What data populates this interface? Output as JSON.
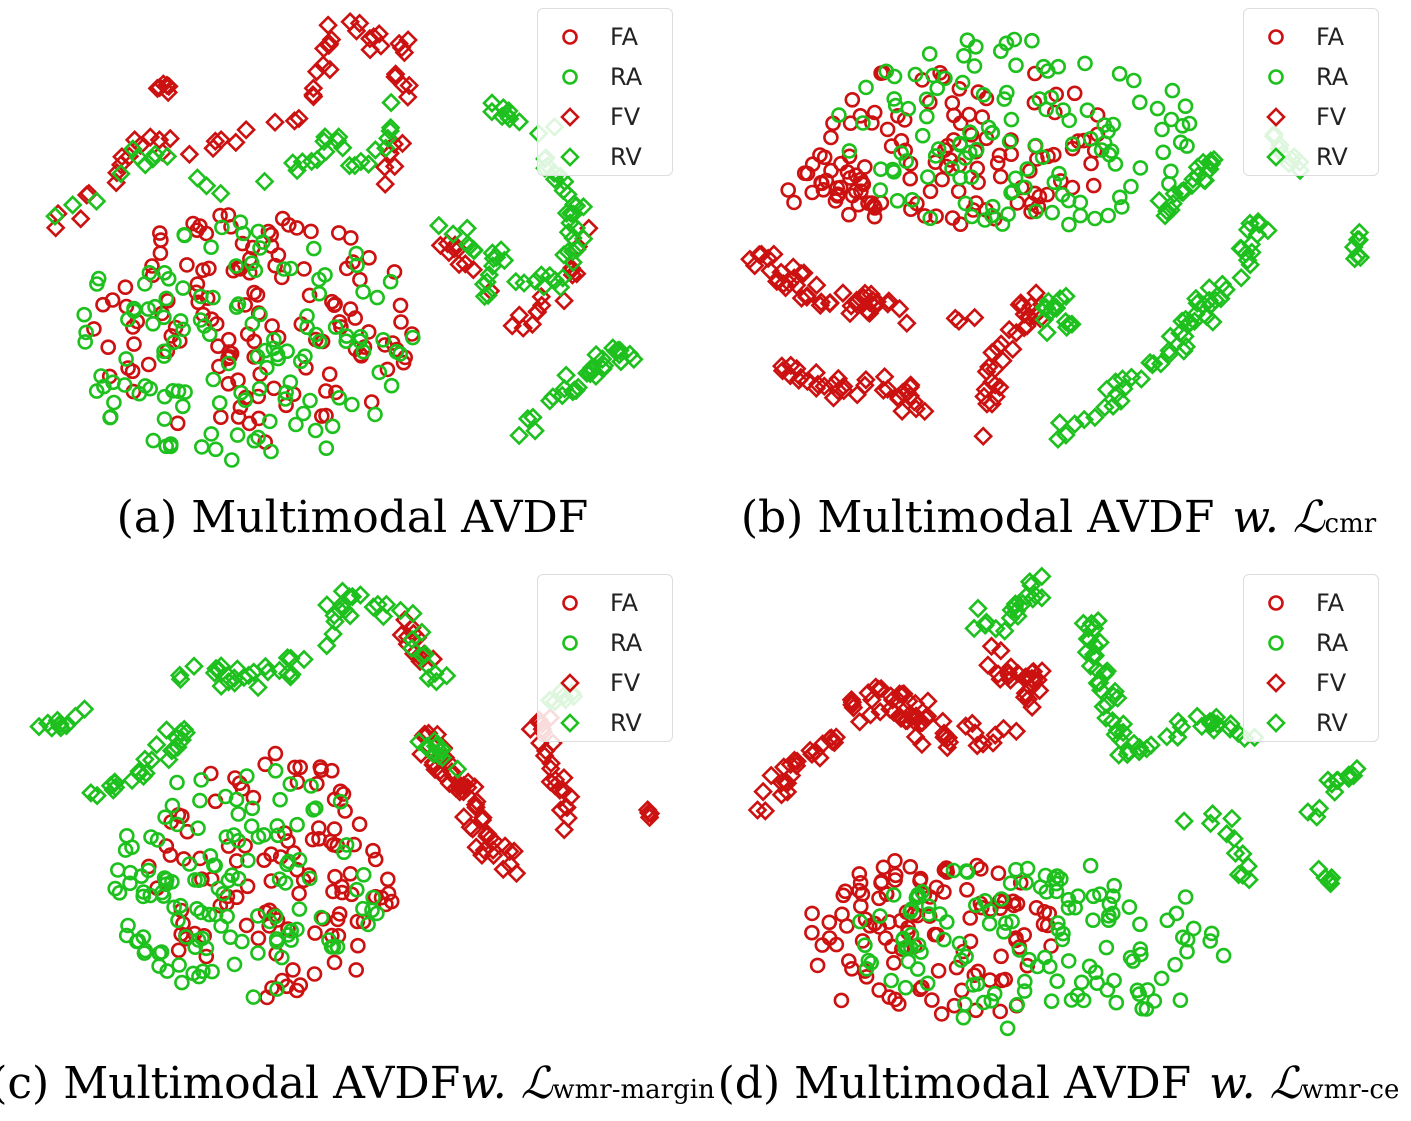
{
  "colors": {
    "fake": "#cc1111",
    "real": "#1ec01e"
  },
  "legend": [
    {
      "label": "FA",
      "marker": "circle",
      "color": "fake"
    },
    {
      "label": "RA",
      "marker": "circle",
      "color": "real"
    },
    {
      "label": "FV",
      "marker": "diamond",
      "color": "fake"
    },
    {
      "label": "RV",
      "marker": "diamond",
      "color": "real"
    }
  ],
  "panels": [
    {
      "caption": {
        "prefix": "(a)",
        "name": "Multimodal AVDF",
        "w": "",
        "loss": "",
        "sub": ""
      }
    },
    {
      "caption": {
        "prefix": "(b)",
        "name": "Multimodal AVDF",
        "w": "w.",
        "loss": "ℒ",
        "sub": "cmr"
      }
    },
    {
      "caption": {
        "prefix": "(c)",
        "name": "Multimodal AVDF",
        "w": "w.",
        "loss": "ℒ",
        "sub": "wmr-margin"
      }
    },
    {
      "caption": {
        "prefix": "(d)",
        "name": "Multimodal AVDF",
        "w": "w.",
        "loss": "ℒ",
        "sub": "wmr-ce"
      }
    }
  ],
  "chart_data": [
    {
      "type": "scatter",
      "title": "",
      "xlim": [
        0,
        700
      ],
      "ylim": [
        0,
        490
      ],
      "axes_visible": false,
      "legend_position": "top-right",
      "clusters": [
        {
          "series": "FA",
          "cx": 250,
          "cy": 330,
          "rx": 170,
          "ry": 120,
          "n": 130,
          "seed": 11
        },
        {
          "series": "RA",
          "cx": 240,
          "cy": 345,
          "rx": 180,
          "ry": 125,
          "n": 130,
          "seed": 12
        },
        {
          "series": "FV",
          "path": [
            [
              40,
              225
            ],
            [
              90,
              190
            ],
            [
              150,
              140
            ],
            [
              200,
              160
            ],
            [
              230,
              130
            ],
            [
              320,
              100
            ],
            [
              330,
              20
            ],
            [
              400,
              40
            ],
            [
              410,
              120
            ],
            [
              380,
              190
            ]
          ],
          "n": 60,
          "spread": 12,
          "seed": 13
        },
        {
          "series": "FV",
          "path": [
            [
              155,
              80
            ],
            [
              160,
              90
            ]
          ],
          "n": 6,
          "spread": 6,
          "seed": 14
        },
        {
          "series": "FV",
          "path": [
            [
              430,
              230
            ],
            [
              460,
              260
            ],
            [
              520,
              330
            ],
            [
              570,
              290
            ],
            [
              590,
              230
            ]
          ],
          "n": 25,
          "spread": 10,
          "seed": 15
        },
        {
          "series": "RV",
          "path": [
            [
              40,
              225
            ],
            [
              90,
              190
            ],
            [
              130,
              150
            ],
            [
              210,
              185
            ],
            [
              280,
              180
            ],
            [
              330,
              140
            ],
            [
              370,
              170
            ],
            [
              410,
              70
            ]
          ],
          "n": 35,
          "spread": 12,
          "seed": 16
        },
        {
          "series": "RV",
          "path": [
            [
              430,
              225
            ],
            [
              500,
              255
            ],
            [
              490,
              295
            ],
            [
              560,
              280
            ],
            [
              580,
              220
            ],
            [
              540,
              150
            ],
            [
              560,
              130
            ]
          ],
          "n": 55,
          "spread": 12,
          "seed": 17
        },
        {
          "series": "RV",
          "path": [
            [
              520,
              440
            ],
            [
              560,
              400
            ],
            [
              610,
              360
            ],
            [
              650,
              350
            ]
          ],
          "n": 30,
          "spread": 10,
          "seed": 18
        },
        {
          "series": "RV",
          "path": [
            [
              490,
              100
            ],
            [
              520,
              115
            ]
          ],
          "n": 8,
          "spread": 6,
          "seed": 19
        }
      ]
    },
    {
      "type": "scatter",
      "title": "",
      "xlim": [
        0,
        700
      ],
      "ylim": [
        0,
        490
      ],
      "axes_visible": false,
      "legend_position": "top-right",
      "clusters": [
        {
          "series": "FA",
          "cx": 250,
          "cy": 145,
          "rx": 160,
          "ry": 90,
          "n": 100,
          "seed": 21
        },
        {
          "series": "FA",
          "cx": 120,
          "cy": 190,
          "rx": 60,
          "ry": 25,
          "n": 25,
          "seed": 22
        },
        {
          "series": "RA",
          "cx": 300,
          "cy": 130,
          "rx": 190,
          "ry": 100,
          "n": 120,
          "seed": 23
        },
        {
          "series": "FV",
          "path": [
            [
              40,
              255
            ],
            [
              90,
              290
            ],
            [
              150,
              305
            ],
            [
              210,
              320
            ]
          ],
          "n": 45,
          "spread": 12,
          "seed": 24
        },
        {
          "series": "FV",
          "path": [
            [
              80,
              375
            ],
            [
              130,
              400
            ],
            [
              180,
              390
            ],
            [
              210,
              415
            ]
          ],
          "n": 35,
          "spread": 12,
          "seed": 25
        },
        {
          "series": "FV",
          "path": [
            [
              240,
              325
            ],
            [
              290,
              340
            ],
            [
              330,
              300
            ],
            [
              280,
              370
            ],
            [
              270,
              440
            ]
          ],
          "n": 35,
          "spread": 12,
          "seed": 26
        },
        {
          "series": "RV",
          "path": [
            [
              330,
              330
            ],
            [
              350,
              300
            ],
            [
              360,
              340
            ]
          ],
          "n": 15,
          "spread": 8,
          "seed": 27
        },
        {
          "series": "RV",
          "path": [
            [
              360,
              440
            ],
            [
              420,
              390
            ],
            [
              480,
              330
            ],
            [
              540,
              260
            ],
            [
              560,
              210
            ]
          ],
          "n": 60,
          "spread": 12,
          "seed": 28
        },
        {
          "series": "RV",
          "path": [
            [
              450,
              220
            ],
            [
              490,
              180
            ],
            [
              510,
              150
            ]
          ],
          "n": 20,
          "spread": 10,
          "seed": 29
        },
        {
          "series": "RV",
          "path": [
            [
              650,
              235
            ],
            [
              655,
              260
            ]
          ],
          "n": 8,
          "spread": 6,
          "seed": 30
        },
        {
          "series": "RV",
          "path": [
            [
              560,
              125
            ],
            [
              600,
              165
            ]
          ],
          "n": 10,
          "spread": 6,
          "seed": 31
        }
      ]
    },
    {
      "type": "scatter",
      "title": "",
      "xlim": [
        0,
        700
      ],
      "ylim": [
        0,
        490
      ],
      "axes_visible": false,
      "legend_position": "top-right",
      "clusters": [
        {
          "series": "FA",
          "cx": 270,
          "cy": 310,
          "rx": 130,
          "ry": 130,
          "n": 110,
          "seed": 41
        },
        {
          "series": "RA",
          "cx": 240,
          "cy": 320,
          "rx": 140,
          "ry": 120,
          "n": 130,
          "seed": 42
        },
        {
          "series": "FV",
          "path": [
            [
              420,
              170
            ],
            [
              460,
              220
            ],
            [
              480,
              270
            ],
            [
              510,
              300
            ]
          ],
          "n": 50,
          "spread": 12,
          "seed": 43
        },
        {
          "series": "FV",
          "path": [
            [
              540,
              150
            ],
            [
              560,
              210
            ],
            [
              570,
              260
            ]
          ],
          "n": 25,
          "spread": 10,
          "seed": 44
        },
        {
          "series": "FV",
          "path": [
            [
              400,
              50
            ],
            [
              430,
              100
            ]
          ],
          "n": 12,
          "spread": 8,
          "seed": 45
        },
        {
          "series": "FV",
          "path": [
            [
              645,
              245
            ],
            [
              650,
              250
            ]
          ],
          "n": 4,
          "spread": 5,
          "seed": 46
        },
        {
          "series": "RV",
          "path": [
            [
              30,
              165
            ],
            [
              70,
              150
            ],
            [
              90,
              130
            ]
          ],
          "n": 10,
          "spread": 8,
          "seed": 47
        },
        {
          "series": "RV",
          "path": [
            [
              90,
              225
            ],
            [
              130,
              210
            ],
            [
              160,
              180
            ],
            [
              180,
              160
            ]
          ],
          "n": 25,
          "spread": 10,
          "seed": 48
        },
        {
          "series": "RV",
          "path": [
            [
              180,
              100
            ],
            [
              230,
              105
            ],
            [
              280,
              110
            ],
            [
              320,
              60
            ],
            [
              355,
              20
            ],
            [
              400,
              40
            ],
            [
              440,
              110
            ]
          ],
          "n": 55,
          "spread": 12,
          "seed": 49
        },
        {
          "series": "RV",
          "path": [
            [
              420,
              170
            ],
            [
              450,
              190
            ],
            [
              480,
              210
            ]
          ],
          "n": 12,
          "spread": 8,
          "seed": 50
        },
        {
          "series": "RV",
          "path": [
            [
              540,
              140
            ],
            [
              570,
              120
            ]
          ],
          "n": 8,
          "spread": 6,
          "seed": 51
        }
      ]
    },
    {
      "type": "scatter",
      "title": "",
      "xlim": [
        0,
        700
      ],
      "ylim": [
        0,
        490
      ],
      "axes_visible": false,
      "legend_position": "top-right",
      "clusters": [
        {
          "series": "FA",
          "cx": 220,
          "cy": 380,
          "rx": 130,
          "ry": 90,
          "n": 110,
          "seed": 61
        },
        {
          "series": "RA",
          "cx": 330,
          "cy": 385,
          "rx": 190,
          "ry": 90,
          "n": 130,
          "seed": 62
        },
        {
          "series": "FV",
          "path": [
            [
              40,
              250
            ],
            [
              80,
              200
            ],
            [
              130,
              150
            ],
            [
              180,
              120
            ],
            [
              230,
              160
            ],
            [
              270,
              170
            ],
            [
              310,
              150
            ],
            [
              330,
              110
            ]
          ],
          "n": 70,
          "spread": 12,
          "seed": 63
        },
        {
          "series": "FV",
          "path": [
            [
              170,
              120
            ],
            [
              200,
              160
            ],
            [
              240,
              180
            ]
          ],
          "n": 20,
          "spread": 10,
          "seed": 64
        },
        {
          "series": "FV",
          "path": [
            [
              270,
              70
            ],
            [
              300,
              100
            ],
            [
              330,
              110
            ]
          ],
          "n": 15,
          "spread": 10,
          "seed": 65
        },
        {
          "series": "RV",
          "path": [
            [
              260,
              40
            ],
            [
              290,
              60
            ],
            [
              330,
              10
            ]
          ],
          "n": 20,
          "spread": 10,
          "seed": 66
        },
        {
          "series": "RV",
          "path": [
            [
              380,
              50
            ],
            [
              400,
              120
            ],
            [
              420,
              190
            ]
          ],
          "n": 35,
          "spread": 10,
          "seed": 67
        },
        {
          "series": "RV",
          "path": [
            [
              420,
              190
            ],
            [
              470,
              160
            ],
            [
              510,
              150
            ],
            [
              550,
              180
            ]
          ],
          "n": 25,
          "spread": 10,
          "seed": 68
        },
        {
          "series": "RV",
          "path": [
            [
              480,
              260
            ],
            [
              520,
              245
            ],
            [
              540,
              320
            ]
          ],
          "n": 12,
          "spread": 8,
          "seed": 69
        },
        {
          "series": "RV",
          "path": [
            [
              600,
              260
            ],
            [
              620,
              220
            ],
            [
              660,
              200
            ]
          ],
          "n": 12,
          "spread": 8,
          "seed": 70
        },
        {
          "series": "RV",
          "path": [
            [
              610,
              300
            ],
            [
              630,
              320
            ]
          ],
          "n": 6,
          "spread": 6,
          "seed": 71
        }
      ]
    }
  ]
}
